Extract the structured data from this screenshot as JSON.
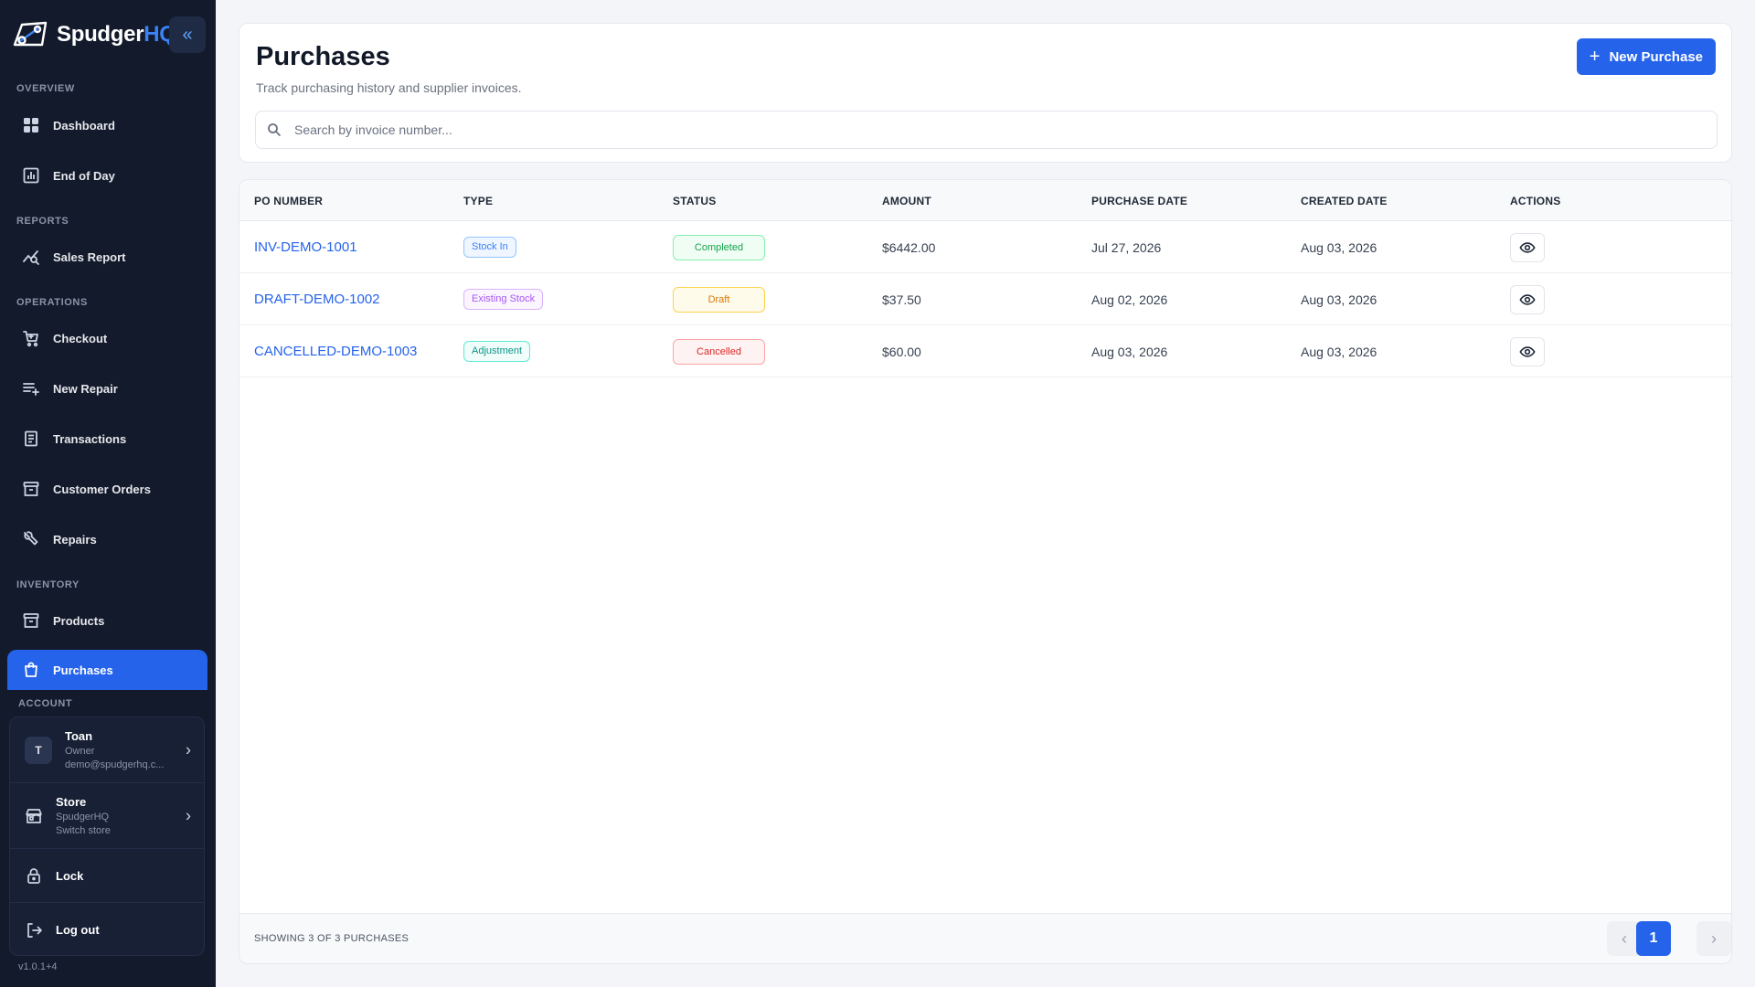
{
  "brand": {
    "name_main": "Spudger",
    "name_accent": "HQ"
  },
  "sidebar": {
    "collapse_icon": "double-chevron-left-icon",
    "sections": {
      "overview": "OVERVIEW",
      "reports": "REPORTS",
      "operations": "OPERATIONS",
      "inventory": "INVENTORY",
      "account": "ACCOUNT"
    },
    "items": {
      "dashboard": "Dashboard",
      "end_of_day": "End of Day",
      "sales_report": "Sales Report",
      "checkout": "Checkout",
      "new_repair": "New Repair",
      "transactions": "Transactions",
      "customer_orders": "Customer Orders",
      "repairs": "Repairs",
      "products": "Products",
      "purchases": "Purchases"
    },
    "active_item": "purchases",
    "account": {
      "user_initial": "T",
      "user_name": "Toan",
      "user_role": "Owner",
      "user_email": "demo@spudgerhq.c...",
      "store_title": "Store",
      "store_name": "SpudgerHQ",
      "store_action": "Switch store",
      "lock": "Lock",
      "logout": "Log out"
    },
    "version": "v1.0.1+4"
  },
  "header": {
    "title": "Purchases",
    "subtitle": "Track purchasing history and supplier invoices.",
    "new_button": "New Purchase",
    "search_placeholder": "Search by invoice number..."
  },
  "table": {
    "columns": [
      "PO NUMBER",
      "TYPE",
      "STATUS",
      "AMOUNT",
      "PURCHASE DATE",
      "CREATED DATE",
      "ACTIONS"
    ],
    "rows": [
      {
        "po": "INV-DEMO-1001",
        "type": "Stock In",
        "status": "Completed",
        "amount": "$6442.00",
        "purchase_date": "Jul 27, 2026",
        "created_date": "Aug 03, 2026"
      },
      {
        "po": "DRAFT-DEMO-1002",
        "type": "Existing Stock",
        "status": "Draft",
        "amount": "$37.50",
        "purchase_date": "Aug 02, 2026",
        "created_date": "Aug 03, 2026"
      },
      {
        "po": "CANCELLED-DEMO-1003",
        "type": "Adjustment",
        "status": "Cancelled",
        "amount": "$60.00",
        "purchase_date": "Aug 03, 2026",
        "created_date": "Aug 03, 2026"
      }
    ],
    "footer_text": "SHOWING 3 OF 3 PURCHASES",
    "current_page": "1"
  },
  "colors": {
    "sidebar_bg": "#131a2b",
    "accent": "#2563eb",
    "type_stock_in": "#3b82f6",
    "type_existing_stock": "#a855f7",
    "type_adjustment": "#14b8a6",
    "status_completed": "#22c55e",
    "status_draft": "#f59e0b",
    "status_cancelled": "#ef4444"
  }
}
